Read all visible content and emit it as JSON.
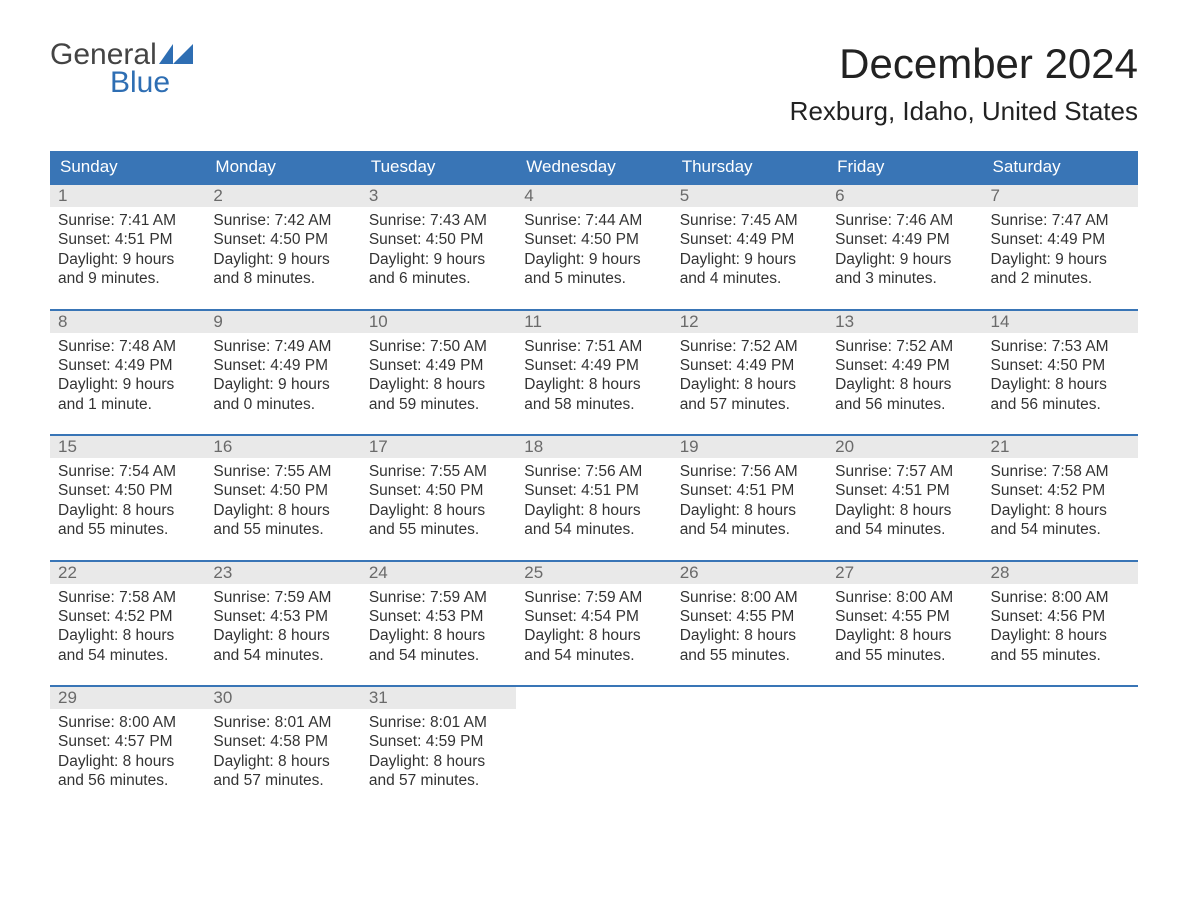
{
  "logo": {
    "word1": "General",
    "word2": "Blue",
    "mark_fill": "#2e6eb3"
  },
  "title": "December 2024",
  "location": "Rexburg, Idaho, United States",
  "colors": {
    "header_bg": "#3975b6",
    "header_text": "#ffffff",
    "daynum_bg": "#e9e9e9",
    "daynum_text": "#6a6a6a",
    "week_border": "#3975b6",
    "body_text": "#333333",
    "page_bg": "#ffffff"
  },
  "dow": [
    "Sunday",
    "Monday",
    "Tuesday",
    "Wednesday",
    "Thursday",
    "Friday",
    "Saturday"
  ],
  "fonts": {
    "title_size_pt": 32,
    "location_size_pt": 20,
    "dow_size_pt": 13,
    "daynum_size_pt": 13,
    "body_size_pt": 12
  },
  "weeks": [
    [
      {
        "n": "1",
        "sr": "Sunrise: 7:41 AM",
        "ss": "Sunset: 4:51 PM",
        "d1": "Daylight: 9 hours",
        "d2": "and 9 minutes."
      },
      {
        "n": "2",
        "sr": "Sunrise: 7:42 AM",
        "ss": "Sunset: 4:50 PM",
        "d1": "Daylight: 9 hours",
        "d2": "and 8 minutes."
      },
      {
        "n": "3",
        "sr": "Sunrise: 7:43 AM",
        "ss": "Sunset: 4:50 PM",
        "d1": "Daylight: 9 hours",
        "d2": "and 6 minutes."
      },
      {
        "n": "4",
        "sr": "Sunrise: 7:44 AM",
        "ss": "Sunset: 4:50 PM",
        "d1": "Daylight: 9 hours",
        "d2": "and 5 minutes."
      },
      {
        "n": "5",
        "sr": "Sunrise: 7:45 AM",
        "ss": "Sunset: 4:49 PM",
        "d1": "Daylight: 9 hours",
        "d2": "and 4 minutes."
      },
      {
        "n": "6",
        "sr": "Sunrise: 7:46 AM",
        "ss": "Sunset: 4:49 PM",
        "d1": "Daylight: 9 hours",
        "d2": "and 3 minutes."
      },
      {
        "n": "7",
        "sr": "Sunrise: 7:47 AM",
        "ss": "Sunset: 4:49 PM",
        "d1": "Daylight: 9 hours",
        "d2": "and 2 minutes."
      }
    ],
    [
      {
        "n": "8",
        "sr": "Sunrise: 7:48 AM",
        "ss": "Sunset: 4:49 PM",
        "d1": "Daylight: 9 hours",
        "d2": "and 1 minute."
      },
      {
        "n": "9",
        "sr": "Sunrise: 7:49 AM",
        "ss": "Sunset: 4:49 PM",
        "d1": "Daylight: 9 hours",
        "d2": "and 0 minutes."
      },
      {
        "n": "10",
        "sr": "Sunrise: 7:50 AM",
        "ss": "Sunset: 4:49 PM",
        "d1": "Daylight: 8 hours",
        "d2": "and 59 minutes."
      },
      {
        "n": "11",
        "sr": "Sunrise: 7:51 AM",
        "ss": "Sunset: 4:49 PM",
        "d1": "Daylight: 8 hours",
        "d2": "and 58 minutes."
      },
      {
        "n": "12",
        "sr": "Sunrise: 7:52 AM",
        "ss": "Sunset: 4:49 PM",
        "d1": "Daylight: 8 hours",
        "d2": "and 57 minutes."
      },
      {
        "n": "13",
        "sr": "Sunrise: 7:52 AM",
        "ss": "Sunset: 4:49 PM",
        "d1": "Daylight: 8 hours",
        "d2": "and 56 minutes."
      },
      {
        "n": "14",
        "sr": "Sunrise: 7:53 AM",
        "ss": "Sunset: 4:50 PM",
        "d1": "Daylight: 8 hours",
        "d2": "and 56 minutes."
      }
    ],
    [
      {
        "n": "15",
        "sr": "Sunrise: 7:54 AM",
        "ss": "Sunset: 4:50 PM",
        "d1": "Daylight: 8 hours",
        "d2": "and 55 minutes."
      },
      {
        "n": "16",
        "sr": "Sunrise: 7:55 AM",
        "ss": "Sunset: 4:50 PM",
        "d1": "Daylight: 8 hours",
        "d2": "and 55 minutes."
      },
      {
        "n": "17",
        "sr": "Sunrise: 7:55 AM",
        "ss": "Sunset: 4:50 PM",
        "d1": "Daylight: 8 hours",
        "d2": "and 55 minutes."
      },
      {
        "n": "18",
        "sr": "Sunrise: 7:56 AM",
        "ss": "Sunset: 4:51 PM",
        "d1": "Daylight: 8 hours",
        "d2": "and 54 minutes."
      },
      {
        "n": "19",
        "sr": "Sunrise: 7:56 AM",
        "ss": "Sunset: 4:51 PM",
        "d1": "Daylight: 8 hours",
        "d2": "and 54 minutes."
      },
      {
        "n": "20",
        "sr": "Sunrise: 7:57 AM",
        "ss": "Sunset: 4:51 PM",
        "d1": "Daylight: 8 hours",
        "d2": "and 54 minutes."
      },
      {
        "n": "21",
        "sr": "Sunrise: 7:58 AM",
        "ss": "Sunset: 4:52 PM",
        "d1": "Daylight: 8 hours",
        "d2": "and 54 minutes."
      }
    ],
    [
      {
        "n": "22",
        "sr": "Sunrise: 7:58 AM",
        "ss": "Sunset: 4:52 PM",
        "d1": "Daylight: 8 hours",
        "d2": "and 54 minutes."
      },
      {
        "n": "23",
        "sr": "Sunrise: 7:59 AM",
        "ss": "Sunset: 4:53 PM",
        "d1": "Daylight: 8 hours",
        "d2": "and 54 minutes."
      },
      {
        "n": "24",
        "sr": "Sunrise: 7:59 AM",
        "ss": "Sunset: 4:53 PM",
        "d1": "Daylight: 8 hours",
        "d2": "and 54 minutes."
      },
      {
        "n": "25",
        "sr": "Sunrise: 7:59 AM",
        "ss": "Sunset: 4:54 PM",
        "d1": "Daylight: 8 hours",
        "d2": "and 54 minutes."
      },
      {
        "n": "26",
        "sr": "Sunrise: 8:00 AM",
        "ss": "Sunset: 4:55 PM",
        "d1": "Daylight: 8 hours",
        "d2": "and 55 minutes."
      },
      {
        "n": "27",
        "sr": "Sunrise: 8:00 AM",
        "ss": "Sunset: 4:55 PM",
        "d1": "Daylight: 8 hours",
        "d2": "and 55 minutes."
      },
      {
        "n": "28",
        "sr": "Sunrise: 8:00 AM",
        "ss": "Sunset: 4:56 PM",
        "d1": "Daylight: 8 hours",
        "d2": "and 55 minutes."
      }
    ],
    [
      {
        "n": "29",
        "sr": "Sunrise: 8:00 AM",
        "ss": "Sunset: 4:57 PM",
        "d1": "Daylight: 8 hours",
        "d2": "and 56 minutes."
      },
      {
        "n": "30",
        "sr": "Sunrise: 8:01 AM",
        "ss": "Sunset: 4:58 PM",
        "d1": "Daylight: 8 hours",
        "d2": "and 57 minutes."
      },
      {
        "n": "31",
        "sr": "Sunrise: 8:01 AM",
        "ss": "Sunset: 4:59 PM",
        "d1": "Daylight: 8 hours",
        "d2": "and 57 minutes."
      },
      null,
      null,
      null,
      null
    ]
  ]
}
